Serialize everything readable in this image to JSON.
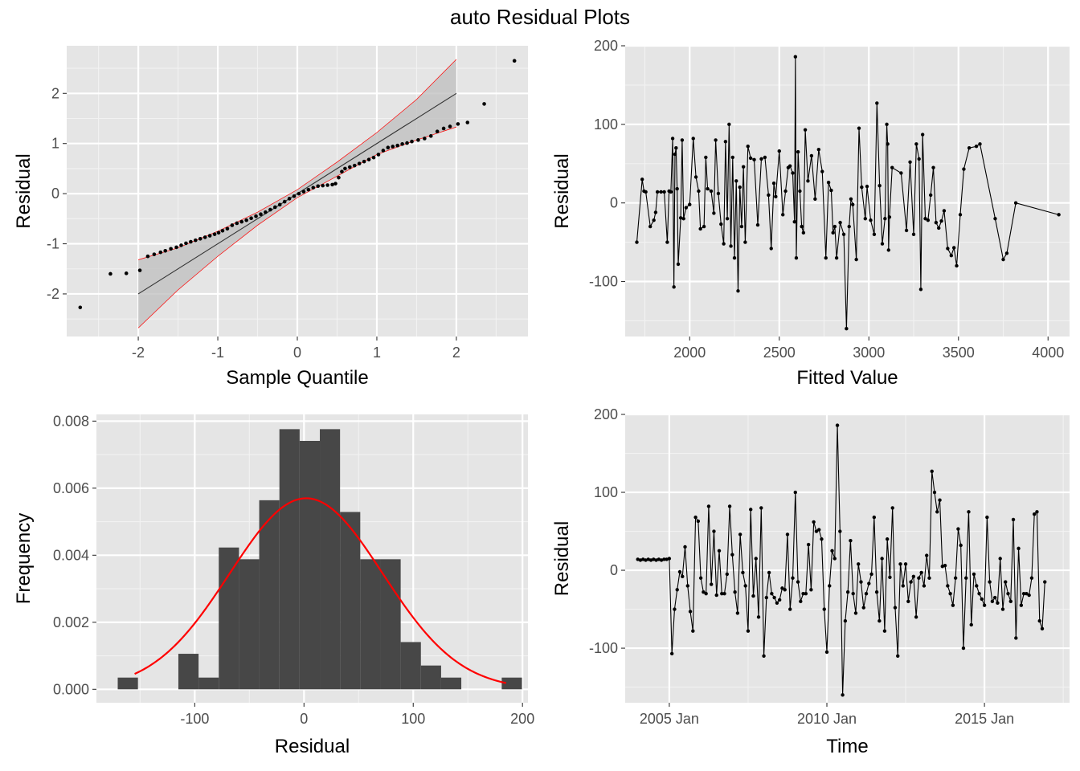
{
  "title": "auto Residual Plots",
  "colors": {
    "panel": "#e5e5e5",
    "grid_major": "#ffffff",
    "grid_minor": "#f2f2f2",
    "bars": "#474747",
    "points": "#000000",
    "ref_line": "#333333",
    "band_fill": "#bdbdbd",
    "band_edge": "#ff0000",
    "density": "#ff0000"
  },
  "chart_data": [
    {
      "id": "qq",
      "type": "scatter",
      "xlabel": "Sample Quantile",
      "ylabel": "Residual",
      "xlim": [
        -2.9,
        2.9
      ],
      "ylim": [
        -2.85,
        2.95
      ],
      "xticks": [
        -2,
        -1,
        0,
        1,
        2
      ],
      "xtick_labels": [
        "-2",
        "-1",
        "0",
        "1",
        "2"
      ],
      "yticks": [
        -2,
        -1,
        0,
        1,
        2
      ],
      "ytick_labels": [
        "-2",
        "-1",
        "0",
        "1",
        "2"
      ],
      "grid": true,
      "reference_line": {
        "x": [
          -2,
          2
        ],
        "y": [
          -2,
          2
        ]
      },
      "band": {
        "x": [
          -2.0,
          -1.5,
          -1.0,
          -0.5,
          0.0,
          0.5,
          1.0,
          1.5,
          2.0
        ],
        "lower": [
          -2.68,
          -1.92,
          -1.25,
          -0.63,
          -0.08,
          0.35,
          0.78,
          1.07,
          1.33
        ],
        "upper": [
          -1.32,
          -1.08,
          -0.75,
          -0.37,
          0.08,
          0.63,
          1.22,
          1.88,
          2.68
        ]
      },
      "points": [
        [
          -2.73,
          -2.27
        ],
        [
          -2.35,
          -1.6
        ],
        [
          -2.15,
          -1.59
        ],
        [
          -1.98,
          -1.53
        ],
        [
          -1.88,
          -1.25
        ],
        [
          -1.8,
          -1.21
        ],
        [
          -1.72,
          -1.17
        ],
        [
          -1.66,
          -1.14
        ],
        [
          -1.59,
          -1.1
        ],
        [
          -1.52,
          -1.07
        ],
        [
          -1.46,
          -1.03
        ],
        [
          -1.4,
          -0.99
        ],
        [
          -1.34,
          -0.96
        ],
        [
          -1.28,
          -0.93
        ],
        [
          -1.22,
          -0.9
        ],
        [
          -1.16,
          -0.87
        ],
        [
          -1.1,
          -0.84
        ],
        [
          -1.04,
          -0.81
        ],
        [
          -0.99,
          -0.78
        ],
        [
          -0.94,
          -0.74
        ],
        [
          -0.88,
          -0.7
        ],
        [
          -0.82,
          -0.63
        ],
        [
          -0.76,
          -0.59
        ],
        [
          -0.7,
          -0.56
        ],
        [
          -0.64,
          -0.53
        ],
        [
          -0.58,
          -0.49
        ],
        [
          -0.52,
          -0.45
        ],
        [
          -0.46,
          -0.41
        ],
        [
          -0.4,
          -0.37
        ],
        [
          -0.34,
          -0.32
        ],
        [
          -0.28,
          -0.27
        ],
        [
          -0.22,
          -0.22
        ],
        [
          -0.16,
          -0.16
        ],
        [
          -0.1,
          -0.1
        ],
        [
          -0.04,
          -0.05
        ],
        [
          0.02,
          0.0
        ],
        [
          0.08,
          0.04
        ],
        [
          0.14,
          0.08
        ],
        [
          0.2,
          0.12
        ],
        [
          0.26,
          0.15
        ],
        [
          0.32,
          0.16
        ],
        [
          0.38,
          0.17
        ],
        [
          0.44,
          0.18
        ],
        [
          0.48,
          0.2
        ],
        [
          0.52,
          0.32
        ],
        [
          0.56,
          0.44
        ],
        [
          0.6,
          0.5
        ],
        [
          0.66,
          0.53
        ],
        [
          0.72,
          0.56
        ],
        [
          0.78,
          0.6
        ],
        [
          0.84,
          0.64
        ],
        [
          0.9,
          0.68
        ],
        [
          0.96,
          0.72
        ],
        [
          1.02,
          0.78
        ],
        [
          1.08,
          0.86
        ],
        [
          1.14,
          0.92
        ],
        [
          1.2,
          0.94
        ],
        [
          1.26,
          0.96
        ],
        [
          1.32,
          0.99
        ],
        [
          1.38,
          1.01
        ],
        [
          1.44,
          1.04
        ],
        [
          1.52,
          1.07
        ],
        [
          1.6,
          1.1
        ],
        [
          1.68,
          1.15
        ],
        [
          1.76,
          1.24
        ],
        [
          1.84,
          1.3
        ],
        [
          1.92,
          1.34
        ],
        [
          2.02,
          1.39
        ],
        [
          2.14,
          1.42
        ],
        [
          2.35,
          1.79
        ],
        [
          2.73,
          2.65
        ]
      ]
    },
    {
      "id": "fitted",
      "type": "line",
      "xlabel": "Fitted Value",
      "ylabel": "Residual",
      "xlim": [
        1640,
        4120
      ],
      "ylim": [
        -170,
        200
      ],
      "xticks": [
        2000,
        2500,
        3000,
        3500,
        4000
      ],
      "xtick_labels": [
        "2000",
        "2500",
        "3000",
        "3500",
        "4000"
      ],
      "yticks": [
        -100,
        0,
        100,
        200
      ],
      "ytick_labels": [
        "-100",
        "0",
        "100",
        "200"
      ],
      "grid": true,
      "points": [
        [
          1705,
          -50
        ],
        [
          1735,
          30
        ],
        [
          1745,
          15
        ],
        [
          1755,
          14
        ],
        [
          1780,
          -30
        ],
        [
          1800,
          -22
        ],
        [
          1810,
          -12
        ],
        [
          1820,
          14
        ],
        [
          1840,
          14
        ],
        [
          1858,
          14
        ],
        [
          1875,
          -50
        ],
        [
          1885,
          15
        ],
        [
          1895,
          14
        ],
        [
          1905,
          82
        ],
        [
          1912,
          -107
        ],
        [
          1918,
          62
        ],
        [
          1924,
          70
        ],
        [
          1930,
          18
        ],
        [
          1936,
          -78
        ],
        [
          1950,
          -19
        ],
        [
          1958,
          80
        ],
        [
          1966,
          -20
        ],
        [
          1980,
          -6
        ],
        [
          2000,
          -2
        ],
        [
          2020,
          82
        ],
        [
          2035,
          33
        ],
        [
          2050,
          15
        ],
        [
          2060,
          -33
        ],
        [
          2080,
          -30
        ],
        [
          2090,
          58
        ],
        [
          2100,
          18
        ],
        [
          2120,
          15
        ],
        [
          2135,
          -13
        ],
        [
          2145,
          80
        ],
        [
          2160,
          12
        ],
        [
          2175,
          -27
        ],
        [
          2190,
          -52
        ],
        [
          2200,
          78
        ],
        [
          2210,
          -20
        ],
        [
          2220,
          100
        ],
        [
          2230,
          -55
        ],
        [
          2240,
          58
        ],
        [
          2250,
          -70
        ],
        [
          2260,
          28
        ],
        [
          2270,
          -112
        ],
        [
          2280,
          20
        ],
        [
          2290,
          -30
        ],
        [
          2300,
          46
        ],
        [
          2310,
          -50
        ],
        [
          2325,
          72
        ],
        [
          2340,
          57
        ],
        [
          2360,
          55
        ],
        [
          2380,
          -28
        ],
        [
          2400,
          56
        ],
        [
          2420,
          58
        ],
        [
          2440,
          10
        ],
        [
          2455,
          -58
        ],
        [
          2470,
          25
        ],
        [
          2480,
          8
        ],
        [
          2500,
          66
        ],
        [
          2520,
          -15
        ],
        [
          2535,
          15
        ],
        [
          2550,
          45
        ],
        [
          2560,
          47
        ],
        [
          2575,
          38
        ],
        [
          2585,
          -24
        ],
        [
          2590,
          186
        ],
        [
          2595,
          -70
        ],
        [
          2605,
          65
        ],
        [
          2615,
          15
        ],
        [
          2625,
          -30
        ],
        [
          2635,
          -38
        ],
        [
          2645,
          93
        ],
        [
          2660,
          28
        ],
        [
          2680,
          60
        ],
        [
          2700,
          5
        ],
        [
          2720,
          68
        ],
        [
          2740,
          40
        ],
        [
          2760,
          -70
        ],
        [
          2775,
          26
        ],
        [
          2790,
          16
        ],
        [
          2800,
          -38
        ],
        [
          2810,
          -30
        ],
        [
          2820,
          -70
        ],
        [
          2840,
          -25
        ],
        [
          2860,
          -40
        ],
        [
          2875,
          -160
        ],
        [
          2890,
          -30
        ],
        [
          2900,
          5
        ],
        [
          2910,
          -2
        ],
        [
          2930,
          -72
        ],
        [
          2945,
          95
        ],
        [
          2960,
          20
        ],
        [
          2980,
          -20
        ],
        [
          2990,
          21
        ],
        [
          3010,
          -22
        ],
        [
          3030,
          -40
        ],
        [
          3045,
          127
        ],
        [
          3060,
          22
        ],
        [
          3075,
          -52
        ],
        [
          3090,
          -20
        ],
        [
          3100,
          100
        ],
        [
          3105,
          75
        ],
        [
          3110,
          -60
        ],
        [
          3115,
          -18
        ],
        [
          3130,
          45
        ],
        [
          3180,
          38
        ],
        [
          3210,
          -35
        ],
        [
          3230,
          52
        ],
        [
          3250,
          -40
        ],
        [
          3265,
          75
        ],
        [
          3280,
          56
        ],
        [
          3290,
          -110
        ],
        [
          3300,
          87
        ],
        [
          3315,
          -20
        ],
        [
          3330,
          -22
        ],
        [
          3345,
          10
        ],
        [
          3360,
          45
        ],
        [
          3375,
          -25
        ],
        [
          3390,
          -32
        ],
        [
          3405,
          -23
        ],
        [
          3420,
          -10
        ],
        [
          3440,
          -58
        ],
        [
          3460,
          -67
        ],
        [
          3475,
          -57
        ],
        [
          3490,
          -80
        ],
        [
          3510,
          -15
        ],
        [
          3530,
          43
        ],
        [
          3560,
          70
        ],
        [
          3600,
          72
        ],
        [
          3620,
          75
        ],
        [
          3705,
          -20
        ],
        [
          3750,
          -72
        ],
        [
          3770,
          -64
        ],
        [
          3820,
          0
        ],
        [
          4060,
          -15
        ]
      ]
    },
    {
      "id": "histogram",
      "type": "bar",
      "xlabel": "Residual",
      "ylabel": "Frequency",
      "xlim": [
        -190,
        205
      ],
      "ylim": [
        -0.0004,
        0.0082
      ],
      "xticks": [
        -100,
        0,
        100,
        200
      ],
      "xtick_labels": [
        "-100",
        "0",
        "100",
        "200"
      ],
      "yticks": [
        0,
        0.002,
        0.004,
        0.006,
        0.008
      ],
      "ytick_labels": [
        "0.000",
        "0.002",
        "0.004",
        "0.006",
        "0.008"
      ],
      "grid": true,
      "bin_width": 18.5,
      "bin_lefts": [
        -170.5,
        -152,
        -133.5,
        -115,
        -96.5,
        -78,
        -59.5,
        -41,
        -22.5,
        -4,
        14.5,
        33,
        51.5,
        70,
        88.5,
        107,
        125.5,
        144,
        162.5,
        181
      ],
      "bin_heights": [
        0.00035,
        0,
        0,
        0.00106,
        0.00035,
        0.00423,
        0.00388,
        0.00564,
        0.00776,
        0.00741,
        0.00776,
        0.00529,
        0.00388,
        0.00388,
        0.00141,
        0.00071,
        0.00035,
        0,
        0,
        0.00035
      ],
      "density_curve": {
        "mean": 2,
        "sd": 70,
        "from": -155,
        "to": 185
      }
    },
    {
      "id": "time",
      "type": "line",
      "xlabel": "Time",
      "ylabel": "Residual",
      "xlim": [
        2003.6,
        2017.7
      ],
      "ylim": [
        -170,
        200
      ],
      "xticks": [
        2005,
        2010,
        2015
      ],
      "xtick_labels": [
        "2005 Jan",
        "2010 Jan",
        "2015 Jan"
      ],
      "yticks": [
        -100,
        0,
        100,
        200
      ],
      "ytick_labels": [
        "-100",
        "0",
        "100",
        "200"
      ],
      "grid": true,
      "start_year": 2004.0,
      "step": 0.08333,
      "values": [
        14,
        13,
        14,
        13,
        14,
        13,
        14,
        13,
        14,
        13,
        14,
        14,
        15,
        -107,
        -50,
        -25,
        -2,
        -8,
        30,
        -20,
        -53,
        -78,
        68,
        63,
        -10,
        -28,
        -30,
        82,
        -18,
        50,
        -32,
        25,
        -30,
        -30,
        -5,
        82,
        20,
        -28,
        -55,
        46,
        -3,
        -20,
        -78,
        78,
        -33,
        15,
        -60,
        80,
        -110,
        -35,
        -3,
        -30,
        -35,
        -42,
        -38,
        -23,
        -25,
        46,
        -50,
        -10,
        100,
        -15,
        -40,
        -30,
        -30,
        33,
        -25,
        62,
        50,
        52,
        40,
        -50,
        -105,
        -20,
        25,
        15,
        186,
        50,
        -160,
        -65,
        -28,
        38,
        -30,
        -55,
        8,
        -15,
        -48,
        -30,
        -17,
        -5,
        68,
        -28,
        -65,
        15,
        -78,
        40,
        -9,
        80,
        -48,
        -110,
        8,
        -20,
        8,
        -40,
        -15,
        -8,
        -60,
        -10,
        -3,
        -20,
        19,
        -10,
        127,
        100,
        75,
        90,
        5,
        6,
        -20,
        -30,
        -45,
        -10,
        53,
        32,
        -100,
        -10,
        75,
        -70,
        -5,
        -20,
        -30,
        -37,
        -45,
        68,
        -15,
        -40,
        -35,
        -42,
        15,
        -50,
        -15,
        -30,
        -40,
        65,
        -87,
        28,
        -45,
        -30,
        -30,
        -32,
        -10,
        72,
        75,
        -65,
        -75,
        -15
      ]
    }
  ]
}
